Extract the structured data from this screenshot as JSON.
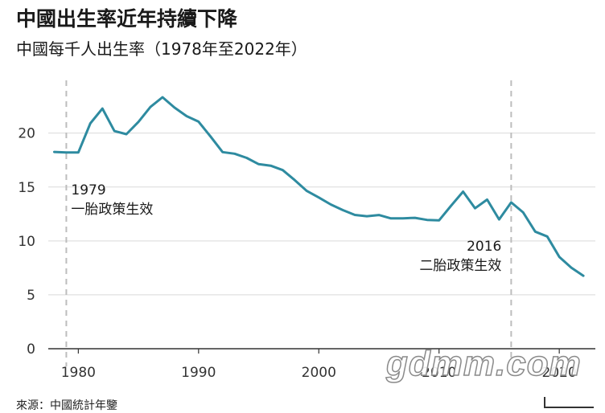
{
  "title": "中國出生率近年持續下降",
  "subtitle": "中國每千人出生率（1978年至2022年）",
  "source": "來源：中國統計年鑒",
  "watermark": "gdmm.com",
  "colors": {
    "line": "#2e8ba0",
    "grid": "#d9d9d9",
    "guide": "#bdbdbd",
    "axis": "#333333"
  },
  "chart_data": {
    "type": "line",
    "x": [
      1978,
      1979,
      1980,
      1981,
      1982,
      1983,
      1984,
      1985,
      1986,
      1987,
      1988,
      1989,
      1990,
      1991,
      1992,
      1993,
      1994,
      1995,
      1996,
      1997,
      1998,
      1999,
      2000,
      2001,
      2002,
      2003,
      2004,
      2005,
      2006,
      2007,
      2008,
      2009,
      2010,
      2011,
      2012,
      2013,
      2014,
      2015,
      2016,
      2017,
      2018,
      2019,
      2020,
      2021,
      2022
    ],
    "series": [
      {
        "values": [
          18.25,
          18.21,
          18.21,
          20.91,
          22.28,
          20.19,
          19.9,
          21.04,
          22.43,
          23.33,
          22.37,
          21.58,
          21.06,
          19.68,
          18.24,
          18.09,
          17.7,
          17.12,
          16.98,
          16.57,
          15.64,
          14.64,
          14.03,
          13.38,
          12.86,
          12.41,
          12.29,
          12.4,
          12.09,
          12.1,
          12.14,
          11.95,
          11.9,
          13.27,
          14.57,
          13.03,
          13.83,
          11.99,
          13.57,
          12.64,
          10.86,
          10.41,
          8.52,
          7.52,
          6.77
        ]
      }
    ],
    "xlim": [
      1977.5,
      2023
    ],
    "ylim": [
      0,
      24
    ],
    "x_ticks": [
      1980,
      1990,
      2000,
      2010,
      2020
    ],
    "y_ticks": [
      0,
      5,
      10,
      15,
      20
    ],
    "grid": true,
    "annotations": [
      {
        "x": 1979,
        "label_year": "1979",
        "label_text": "一胎政策生效"
      },
      {
        "x": 2016,
        "label_year": "2016",
        "label_text": "二胎政策生效"
      }
    ]
  }
}
